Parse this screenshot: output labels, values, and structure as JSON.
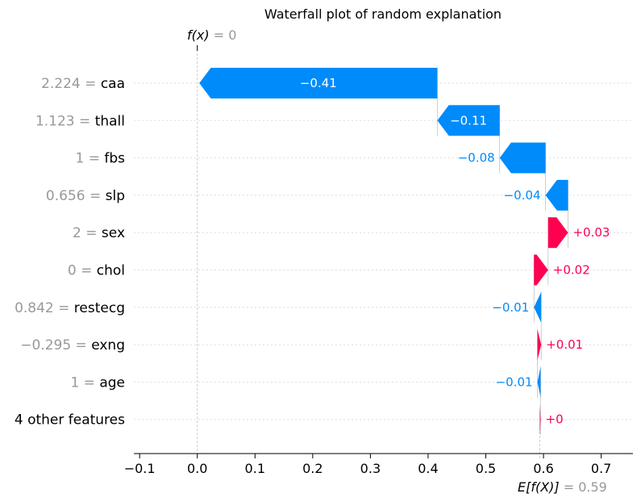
{
  "chart_data": {
    "type": "waterfall",
    "title": "Waterfall plot of random explanation",
    "fx_label": "f(x)",
    "fx_value_text": " = 0",
    "fx": 0.0,
    "base_label": "E[f(X)]",
    "base_value_text": " = 0.59",
    "base_value": 0.5935,
    "xlim": [
      -0.11,
      0.755
    ],
    "xticks": [
      -0.1,
      0.0,
      0.1,
      0.2,
      0.3,
      0.4,
      0.5,
      0.6,
      0.7
    ],
    "xtick_labels": [
      "−0.1",
      "0.0",
      "0.1",
      "0.2",
      "0.3",
      "0.4",
      "0.5",
      "0.6",
      "0.7"
    ],
    "features": [
      {
        "value": "2.224",
        "name": "caa",
        "shap": -0.4125,
        "label": "−0.41"
      },
      {
        "value": "1.123",
        "name": "thall",
        "shap": -0.108,
        "label": "−0.11"
      },
      {
        "value": "1",
        "name": "fbs",
        "shap": -0.0795,
        "label": "−0.08"
      },
      {
        "value": "0.656",
        "name": "slp",
        "shap": -0.039,
        "label": "−0.04"
      },
      {
        "value": "2",
        "name": "sex",
        "shap": 0.0345,
        "label": "+0.03"
      },
      {
        "value": "0",
        "name": "chol",
        "shap": 0.0245,
        "label": "+0.02"
      },
      {
        "value": "0.842",
        "name": "restecg",
        "shap": -0.0125,
        "label": "−0.01"
      },
      {
        "value": "−0.295",
        "name": "exng",
        "shap": 0.0065,
        "label": "+0.01"
      },
      {
        "value": "1",
        "name": "age",
        "shap": -0.0055,
        "label": "−0.01"
      },
      {
        "value": "",
        "name": "4 other features",
        "shap": 0.0015,
        "label": "+0"
      }
    ],
    "colors": {
      "negative": "#008bfb",
      "positive": "#ff0051",
      "value_text": "#999999"
    }
  }
}
